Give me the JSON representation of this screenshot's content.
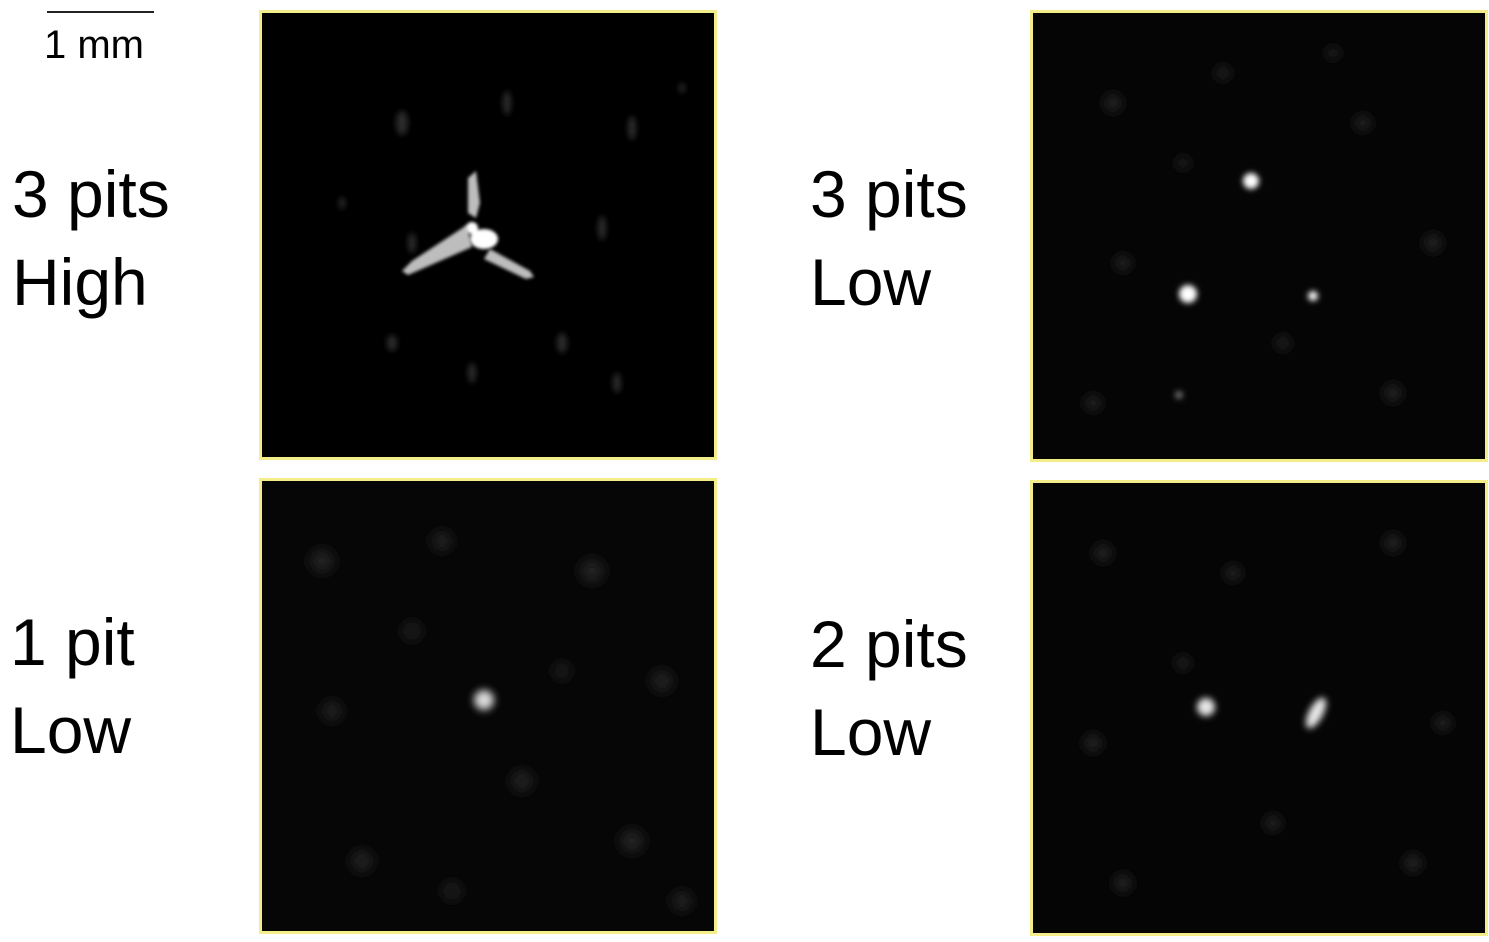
{
  "scalebar": {
    "label": "1 mm"
  },
  "panels": [
    {
      "id": "a",
      "label_line1": "3 pits",
      "label_line2": "High"
    },
    {
      "id": "b",
      "label_line1": "3 pits",
      "label_line2": "Low"
    },
    {
      "id": "c",
      "label_line1": "1 pit",
      "label_line2": "Low"
    },
    {
      "id": "d",
      "label_line1": "2 pits",
      "label_line2": "Low"
    }
  ],
  "colors": {
    "panel_border": "#f3ee8a",
    "panel_background": "#000000",
    "spot": "#ffffff"
  }
}
